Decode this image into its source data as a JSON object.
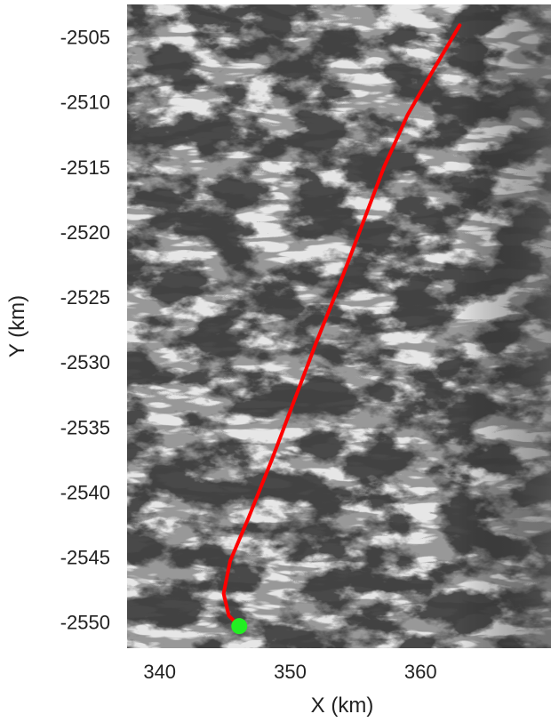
{
  "chart_data": {
    "type": "map-overlay",
    "background": "grayscale satellite image of glacier terrain",
    "xlabel": "X (km)",
    "ylabel": "Y (km)",
    "xlim": [
      337.5,
      370
    ],
    "ylim": [
      -2552,
      -2502.5
    ],
    "x_ticks": [
      340,
      350,
      360
    ],
    "y_ticks": [
      -2505,
      -2510,
      -2515,
      -2520,
      -2525,
      -2530,
      -2535,
      -2540,
      -2545,
      -2550
    ],
    "x_tick_labels": [
      "340",
      "350",
      "360"
    ],
    "y_tick_labels": [
      "-2505",
      "-2510",
      "-2515",
      "-2520",
      "-2525",
      "-2530",
      "-2535",
      "-2540",
      "-2545",
      "-2550"
    ],
    "track": {
      "color": "#ff0000",
      "points": [
        {
          "x": 363.0,
          "y": -2504.1
        },
        {
          "x": 361.0,
          "y": -2507.5
        },
        {
          "x": 359.0,
          "y": -2511.0
        },
        {
          "x": 357.2,
          "y": -2515.0
        },
        {
          "x": 355.5,
          "y": -2519.5
        },
        {
          "x": 353.8,
          "y": -2524.0
        },
        {
          "x": 352.0,
          "y": -2528.5
        },
        {
          "x": 350.3,
          "y": -2533.0
        },
        {
          "x": 348.6,
          "y": -2537.5
        },
        {
          "x": 346.8,
          "y": -2542.0
        },
        {
          "x": 345.4,
          "y": -2545.3
        },
        {
          "x": 344.9,
          "y": -2547.8
        },
        {
          "x": 345.3,
          "y": -2549.5
        },
        {
          "x": 346.1,
          "y": -2550.3
        }
      ]
    },
    "marker": {
      "x": 346.1,
      "y": -2550.3,
      "color": "#22ee22"
    }
  }
}
